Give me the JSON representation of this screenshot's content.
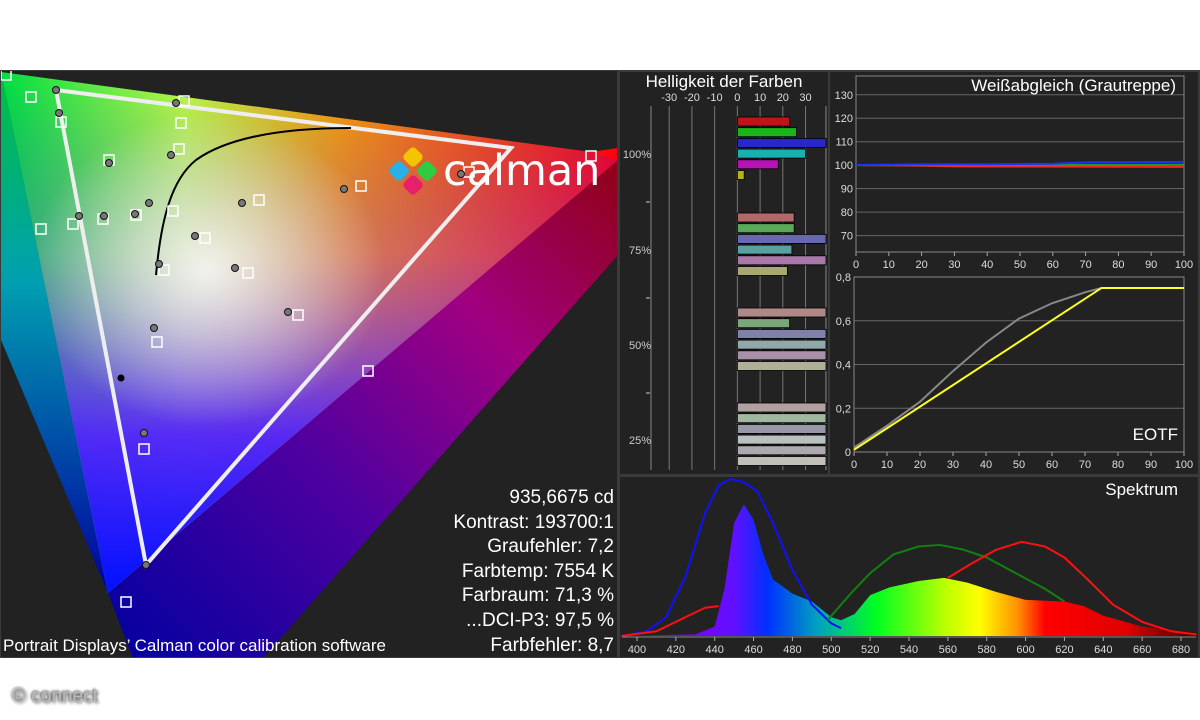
{
  "logo": {
    "text": "calman"
  },
  "copyright": "© connect",
  "credit": "Portrait Displays’ Calman color calibration software",
  "stats": [
    "935,6675 cd",
    "Kontrast: 193700:1",
    "Graufehler: 7,2",
    "Farbtemp: 7554 K",
    "Farbraum: 71,3 %",
    "...DCI-P3: 97,5 %",
    "Farbfehler: 8,7"
  ],
  "chart_data": [
    {
      "type": "scatter",
      "title": "",
      "description_of_marks": "CIE chromaticity diagram with target squares, measured dots, white gamut triangle and black Planckian locus"
    },
    {
      "type": "bar",
      "title": "Helligkeit der Farben",
      "x_ticks": [
        "-30",
        "-20",
        "-10",
        "0",
        "10",
        "20",
        "30"
      ],
      "xlim": [
        -38,
        39
      ],
      "groups": [
        {
          "label": "100%",
          "values": [
            23,
            26,
            39,
            30,
            18,
            3
          ],
          "colors": [
            "#c0141a",
            "#1ab51a",
            "#2828c8",
            "#1ab0b0",
            "#b414b4",
            "#b4b414"
          ]
        },
        {
          "label": "75%",
          "values": [
            25,
            25,
            39,
            24,
            39,
            22
          ],
          "colors": [
            "#b06868",
            "#5aa85a",
            "#6868b0",
            "#5aa0a0",
            "#a878a8",
            "#a8a870"
          ]
        },
        {
          "label": "50%",
          "values": [
            39,
            23,
            39,
            39,
            39,
            39
          ],
          "colors": [
            "#b08888",
            "#7aa87a",
            "#8080a8",
            "#90a8a8",
            "#a890a8",
            "#b0b098"
          ]
        },
        {
          "label": "25%",
          "values": [
            39,
            39,
            39,
            39,
            39,
            39
          ],
          "colors": [
            "#b0a0a0",
            "#a0b8a0",
            "#9898a8",
            "#b8c0c0",
            "#b0a8b0",
            "#c0c0b8"
          ]
        }
      ]
    },
    {
      "type": "line",
      "title": "Weißabgleich (Grautreppe)",
      "xlim": [
        0,
        100
      ],
      "ylim": [
        63,
        138
      ],
      "x_ticks": [
        "0",
        "10",
        "20",
        "30",
        "40",
        "50",
        "60",
        "70",
        "80",
        "90",
        "100"
      ],
      "y_ticks": [
        "70",
        "80",
        "90",
        "100",
        "110",
        "120",
        "130"
      ],
      "series": [
        {
          "color": "#ff2020",
          "points": [
            [
              0,
              100
            ],
            [
              20,
              99.8
            ],
            [
              30,
              99.5
            ],
            [
              100,
              99.3
            ]
          ]
        },
        {
          "color": "#20a020",
          "points": [
            [
              0,
              100
            ],
            [
              50,
              100
            ],
            [
              100,
              100.2
            ]
          ]
        },
        {
          "color": "#2030ff",
          "points": [
            [
              0,
              100
            ],
            [
              20,
              100.4
            ],
            [
              40,
              100.4
            ],
            [
              60,
              100.6
            ],
            [
              70,
              101.2
            ],
            [
              100,
              101.4
            ]
          ]
        }
      ]
    },
    {
      "type": "line",
      "title": "EOTF",
      "xlim": [
        0,
        100
      ],
      "ylim": [
        0,
        0.8
      ],
      "x_ticks": [
        "0",
        "10",
        "20",
        "30",
        "40",
        "50",
        "60",
        "70",
        "80",
        "90",
        "100"
      ],
      "y_ticks": [
        "0",
        "0,2",
        "0,4",
        "0,6",
        "0,8"
      ],
      "series": [
        {
          "color": "#888888",
          "points": [
            [
              0,
              0.02
            ],
            [
              10,
              0.12
            ],
            [
              20,
              0.23
            ],
            [
              30,
              0.37
            ],
            [
              40,
              0.5
            ],
            [
              50,
              0.61
            ],
            [
              60,
              0.68
            ],
            [
              70,
              0.73
            ],
            [
              75,
              0.75
            ],
            [
              100,
              0.75
            ]
          ]
        },
        {
          "color": "#ffff20",
          "points": [
            [
              0,
              0.01
            ],
            [
              75,
              0.75
            ],
            [
              100,
              0.75
            ]
          ]
        }
      ]
    },
    {
      "type": "area",
      "title": "Spektrum",
      "xlim": [
        392,
        688
      ],
      "ylim": [
        0,
        1
      ],
      "x_ticks": [
        "400",
        "420",
        "440",
        "460",
        "480",
        "500",
        "520",
        "540",
        "560",
        "580",
        "600",
        "620",
        "640",
        "660",
        "680"
      ],
      "measured": [
        [
          392,
          0
        ],
        [
          430,
          0.01
        ],
        [
          440,
          0.06
        ],
        [
          445,
          0.3
        ],
        [
          450,
          0.72
        ],
        [
          455,
          0.84
        ],
        [
          460,
          0.74
        ],
        [
          465,
          0.52
        ],
        [
          470,
          0.36
        ],
        [
          480,
          0.27
        ],
        [
          490,
          0.22
        ],
        [
          500,
          0.12
        ],
        [
          505,
          0.1
        ],
        [
          512,
          0.14
        ],
        [
          520,
          0.26
        ],
        [
          530,
          0.31
        ],
        [
          545,
          0.35
        ],
        [
          558,
          0.37
        ],
        [
          570,
          0.34
        ],
        [
          585,
          0.28
        ],
        [
          600,
          0.23
        ],
        [
          620,
          0.22
        ],
        [
          630,
          0.19
        ],
        [
          640,
          0.13
        ],
        [
          660,
          0.06
        ],
        [
          688,
          0.02
        ]
      ],
      "series": [
        {
          "color": "#1010ff",
          "points": [
            [
              392,
              0
            ],
            [
              405,
              0.03
            ],
            [
              415,
              0.12
            ],
            [
              425,
              0.38
            ],
            [
              435,
              0.78
            ],
            [
              442,
              0.96
            ],
            [
              448,
              1
            ],
            [
              455,
              0.98
            ],
            [
              462,
              0.92
            ],
            [
              470,
              0.72
            ],
            [
              480,
              0.42
            ],
            [
              490,
              0.2
            ],
            [
              500,
              0.08
            ],
            [
              505,
              0.05
            ]
          ]
        },
        {
          "color": "#ff1010",
          "points": [
            [
              392,
              0
            ],
            [
              410,
              0.03
            ],
            [
              425,
              0.12
            ],
            [
              435,
              0.18
            ],
            [
              442,
              0.19
            ]
          ]
        },
        {
          "color": "#108010",
          "points": [
            [
              498,
              0.1
            ],
            [
              510,
              0.27
            ],
            [
              520,
              0.4
            ],
            [
              532,
              0.52
            ],
            [
              545,
              0.57
            ],
            [
              556,
              0.58
            ],
            [
              568,
              0.55
            ],
            [
              580,
              0.5
            ],
            [
              595,
              0.4
            ],
            [
              610,
              0.3
            ],
            [
              620,
              0.22
            ]
          ]
        },
        {
          "color": "#ff1010",
          "points": [
            [
              560,
              0.37
            ],
            [
              572,
              0.46
            ],
            [
              585,
              0.55
            ],
            [
              598,
              0.6
            ],
            [
              610,
              0.57
            ],
            [
              620,
              0.5
            ],
            [
              632,
              0.36
            ],
            [
              645,
              0.2
            ],
            [
              660,
              0.09
            ],
            [
              675,
              0.03
            ],
            [
              688,
              0.01
            ]
          ]
        }
      ]
    }
  ]
}
